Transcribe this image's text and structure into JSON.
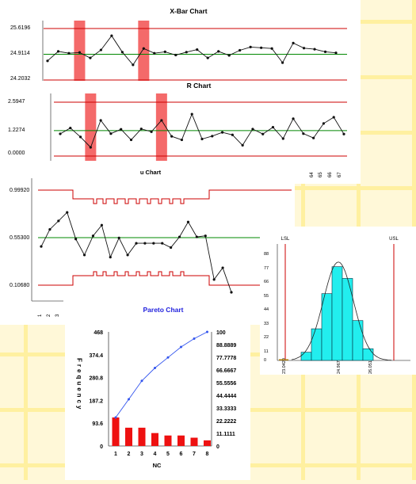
{
  "colors": {
    "background": "#fff8d8",
    "grid": "#fff0a0",
    "limit": "#cc0000",
    "center": "#008800",
    "highlight": "#f46a6a",
    "pareto_bar": "#ee1111",
    "pareto_line": "#3355ee",
    "pareto_title": "#2222dd",
    "histogram_bar": "#22eeee"
  },
  "chart_data": [
    {
      "id": "xbar",
      "type": "line",
      "title": "X-Bar Chart",
      "y_tick_labels": [
        "25.6196",
        "24.9114",
        "24.2032"
      ],
      "ucl": 25.6196,
      "cl": 24.9114,
      "lcl": 24.2032,
      "ylim": [
        24.15,
        25.75
      ],
      "values": [
        24.73,
        24.99,
        24.94,
        24.96,
        24.81,
        25.03,
        25.42,
        24.97,
        24.62,
        25.07,
        24.94,
        24.98,
        24.89,
        24.97,
        25.04,
        24.81,
        24.99,
        24.88,
        25.02,
        25.11,
        25.09,
        25.07,
        24.68,
        25.22,
        25.08,
        25.05,
        24.98,
        24.95
      ],
      "highlighted_points": [
        3,
        9
      ]
    },
    {
      "id": "r",
      "type": "line",
      "title": "R Chart",
      "y_tick_labels": [
        "2.5947",
        "1.2274",
        "0.0000"
      ],
      "ucl": 2.5947,
      "cl": 1.2274,
      "lcl": 0.0,
      "ylim": [
        -0.1,
        2.8
      ],
      "values": [
        1.07,
        1.35,
        0.92,
        0.42,
        1.72,
        1.08,
        1.29,
        0.78,
        1.31,
        1.17,
        1.72,
        0.95,
        0.78,
        2.02,
        0.82,
        0.96,
        1.14,
        1.02,
        0.52,
        1.3,
        1.06,
        1.39,
        0.84,
        1.8,
        1.08,
        0.87,
        1.57,
        1.87,
        1.06
      ],
      "highlighted_points": [
        3,
        10
      ],
      "x_tick_labels": [
        "64",
        "65",
        "66",
        "67"
      ]
    },
    {
      "id": "u",
      "type": "line",
      "title": "u Chart",
      "y_tick_labels": [
        "0.99920",
        "0.55300",
        "0.10680"
      ],
      "cl": 0.553,
      "ylim": [
        0.0,
        1.12
      ],
      "values": [
        0.47,
        0.63,
        0.71,
        0.79,
        0.54,
        0.39,
        0.57,
        0.67,
        0.37,
        0.55,
        0.39,
        0.5,
        0.5,
        0.5,
        0.5,
        0.46,
        0.56,
        0.7,
        0.56,
        0.57,
        0.16,
        0.27,
        0.04
      ],
      "x_tick_labels": [
        "1",
        "2",
        "3"
      ]
    },
    {
      "id": "histogram",
      "type": "bar",
      "markers": [
        "LSL",
        "USL"
      ],
      "y_tick_labels": [
        "88",
        "77",
        "66",
        "55",
        "44",
        "33",
        "22",
        "11",
        "0"
      ],
      "x_tick_labels": [
        "23.0429",
        "24.9675",
        "26.0517"
      ],
      "ylim": [
        0,
        96
      ],
      "bin_values": [
        7,
        27,
        57,
        80,
        70,
        34,
        10
      ],
      "lsl_count": 1
    },
    {
      "id": "pareto",
      "type": "bar",
      "title": "Pareto Chart",
      "xlabel": "NC",
      "ylabel": "Frequency",
      "categories": [
        "1",
        "2",
        "3",
        "4",
        "5",
        "6",
        "7",
        "8"
      ],
      "values": [
        117,
        75,
        75,
        53,
        43,
        43,
        34,
        23
      ],
      "cumulative_percent": [
        25,
        41,
        57.1,
        68.4,
        77.6,
        86.8,
        94.1,
        100
      ],
      "y_left_ticks": [
        "468",
        "374.4",
        "280.8",
        "187.2",
        "93.6",
        "0"
      ],
      "y_right_ticks": [
        "100",
        "88.8889",
        "77.7778",
        "66.6667",
        "55.5556",
        "44.4444",
        "33.3333",
        "22.2222",
        "11.1111",
        "0"
      ],
      "ylim_left": [
        0,
        468
      ],
      "ylim_right": [
        0,
        100
      ]
    }
  ]
}
